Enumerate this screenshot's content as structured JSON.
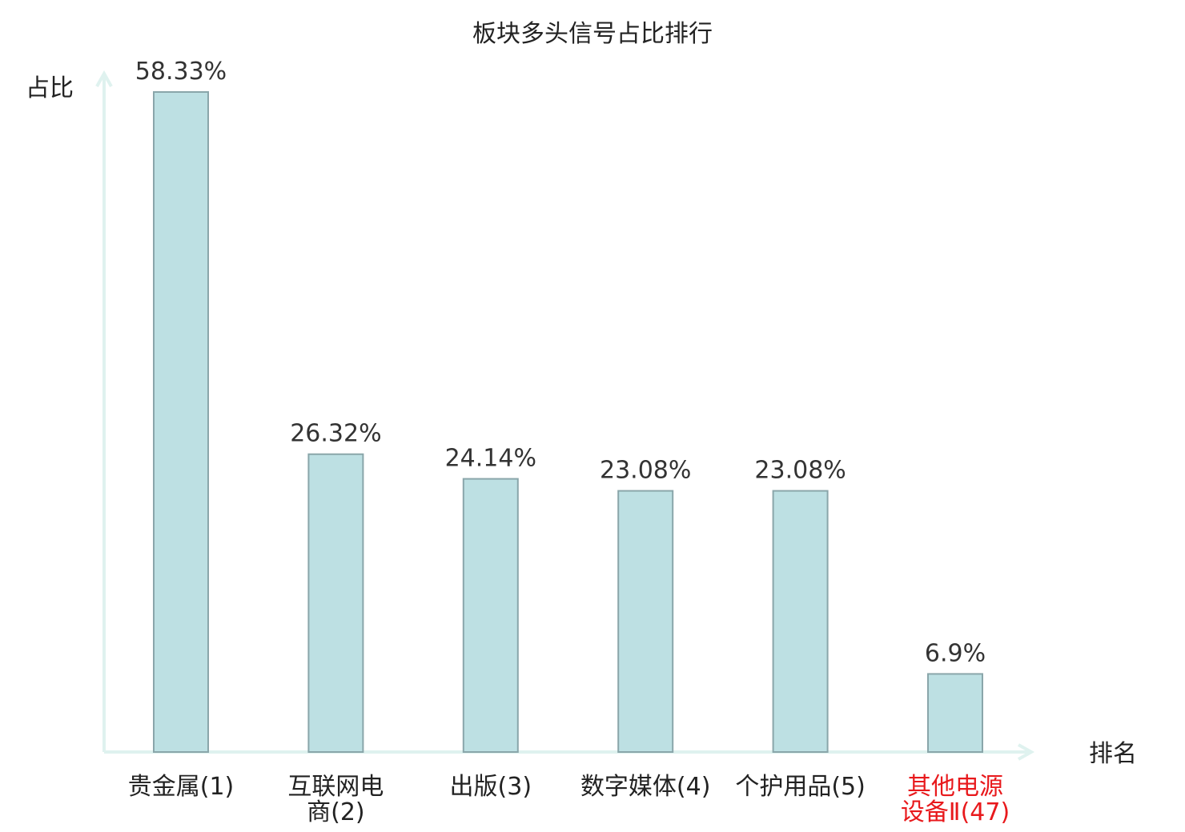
{
  "chart_data": {
    "type": "bar",
    "title": "板块多头信号占比排行",
    "xlabel": "排名",
    "ylabel": "占比",
    "categories": [
      [
        "贵金属(1)"
      ],
      [
        "互联网电",
        "商(2)"
      ],
      [
        "出版(3)"
      ],
      [
        "数字媒体(4)"
      ],
      [
        "个护用品(5)"
      ],
      [
        "其他电源",
        "设备Ⅱ(47)"
      ]
    ],
    "values": [
      58.33,
      26.32,
      24.14,
      23.08,
      23.08,
      6.9
    ],
    "value_labels": [
      "58.33%",
      "26.32%",
      "24.14%",
      "23.08%",
      "23.08%",
      "6.9%"
    ],
    "highlight_index": 5,
    "ylim": [
      0,
      60
    ],
    "grid": false,
    "legend": "none",
    "colors": {
      "bar_fill": "#bde0e3",
      "bar_stroke": "#8aa6aa",
      "axis": "#dff2ef",
      "highlight_text": "#e8191c",
      "text": "#222222"
    }
  }
}
